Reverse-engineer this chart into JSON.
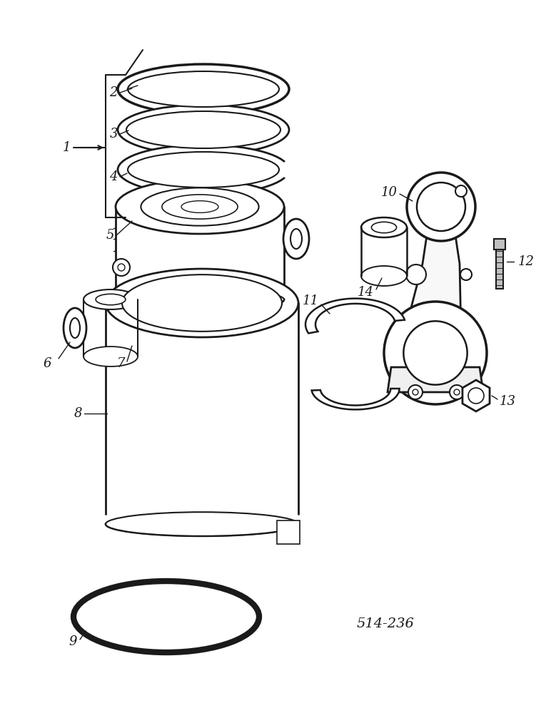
{
  "bg_color": "#ffffff",
  "lc": "#1a1a1a",
  "part_number_text": "514-236",
  "figsize": [
    7.72,
    10.0
  ],
  "dpi": 100,
  "xlim": [
    0,
    772
  ],
  "ylim": [
    0,
    1000
  ]
}
